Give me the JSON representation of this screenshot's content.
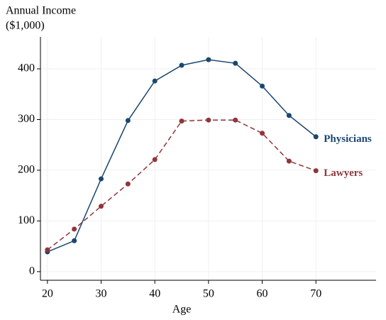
{
  "chart_data": {
    "type": "line",
    "ylabel": [
      "Annual Income",
      "($1,000)"
    ],
    "xlabel": "Age",
    "x": [
      20,
      25,
      30,
      35,
      40,
      45,
      50,
      55,
      60,
      65,
      70
    ],
    "series": [
      {
        "name": "Physicians",
        "color": "#1a476f",
        "linestyle": "solid",
        "values": [
          39,
          61,
          183,
          298,
          376,
          407,
          418,
          411,
          366,
          308,
          266
        ]
      },
      {
        "name": "Lawyers",
        "color": "#90353b",
        "linestyle": "dashed",
        "values": [
          43,
          84,
          129,
          173,
          221,
          297,
          299,
          299,
          273,
          218,
          199
        ]
      }
    ],
    "xlim": [
      18.7,
      81.2
    ],
    "ylim": [
      -17,
      463
    ],
    "xticks": [
      20,
      30,
      40,
      50,
      60,
      70
    ],
    "yticks": [
      0,
      100,
      200,
      300,
      400
    ],
    "grid": true
  }
}
